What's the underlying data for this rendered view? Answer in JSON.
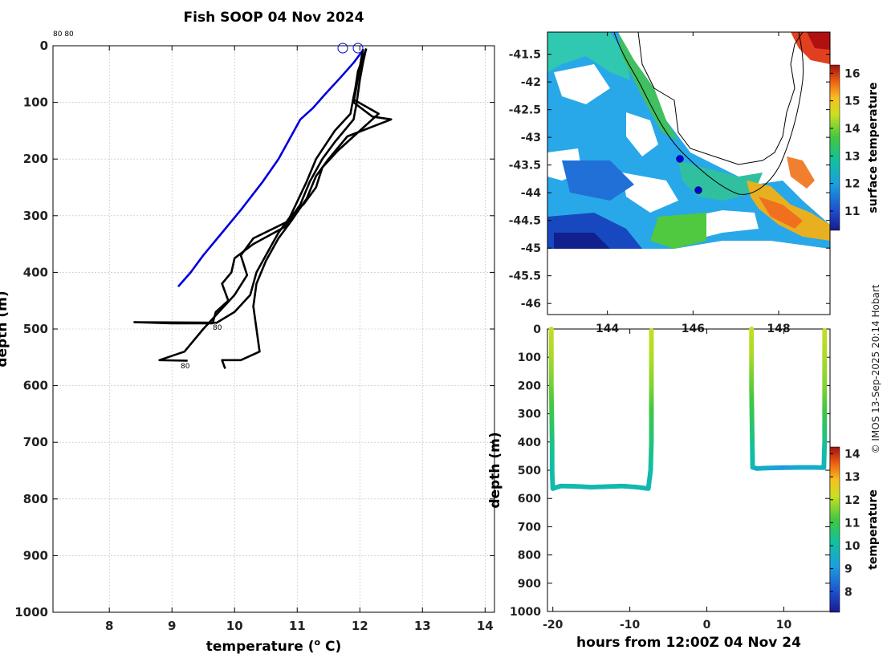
{
  "title": "Fish SOOP 04 Nov 2024",
  "credit": "© IMOS 13-Sep-2025 20:14 Hobart",
  "colors": {
    "profile": "#000000",
    "climatology": "#0000dd",
    "grid": "#bbbbbb"
  },
  "chart_data": [
    {
      "type": "line",
      "name": "temperature-depth profiles",
      "xlabel": "temperature (",
      "xlabel_sup": "o",
      "xlabel_tail": " C)",
      "ylabel": "depth (m)",
      "xlim": [
        7.1,
        14.15
      ],
      "ylim": [
        1000,
        0
      ],
      "xticks": [
        "8",
        "9",
        "10",
        "11",
        "12",
        "13",
        "14"
      ],
      "yticks": [
        "0",
        "100",
        "200",
        "300",
        "400",
        "500",
        "600",
        "700",
        "800",
        "900",
        "1000"
      ],
      "annotations": {
        "top": "80 80",
        "mid": "80",
        "low": "80"
      },
      "series": [
        {
          "name": "climatology",
          "color": "#0000dd",
          "points": [
            [
              12.05,
              8
            ],
            [
              11.9,
              30
            ],
            [
              11.7,
              55
            ],
            [
              11.45,
              85
            ],
            [
              11.25,
              110
            ],
            [
              11.05,
              130
            ],
            [
              10.9,
              160
            ],
            [
              10.7,
              200
            ],
            [
              10.45,
              240
            ],
            [
              10.1,
              290
            ],
            [
              9.8,
              330
            ],
            [
              9.5,
              370
            ],
            [
              9.3,
              400
            ],
            [
              9.1,
              425
            ]
          ]
        },
        {
          "name": "profile 1",
          "color": "#000000",
          "points": [
            [
              12.1,
              5
            ],
            [
              12.05,
              30
            ],
            [
              12.0,
              60
            ],
            [
              11.95,
              100
            ],
            [
              11.9,
              130
            ],
            [
              11.6,
              170
            ],
            [
              11.4,
              200
            ],
            [
              11.2,
              240
            ],
            [
              11.05,
              280
            ],
            [
              10.8,
              320
            ],
            [
              10.3,
              350
            ],
            [
              10.0,
              375
            ],
            [
              9.95,
              400
            ],
            [
              9.8,
              420
            ],
            [
              9.9,
              450
            ],
            [
              9.7,
              470
            ],
            [
              9.65,
              490
            ],
            [
              9.0,
              490
            ],
            [
              8.4,
              488
            ],
            [
              9.7,
              489
            ]
          ]
        },
        {
          "name": "profile 2",
          "color": "#000000",
          "points": [
            [
              12.1,
              5
            ],
            [
              12.0,
              40
            ],
            [
              11.95,
              70
            ],
            [
              11.9,
              100
            ],
            [
              12.2,
              125
            ],
            [
              12.5,
              130
            ],
            [
              11.8,
              160
            ],
            [
              11.5,
              200
            ],
            [
              11.3,
              230
            ],
            [
              11.15,
              270
            ],
            [
              10.9,
              310
            ],
            [
              10.7,
              340
            ],
            [
              10.5,
              380
            ],
            [
              10.35,
              420
            ],
            [
              10.3,
              460
            ],
            [
              10.35,
              500
            ],
            [
              10.4,
              540
            ],
            [
              10.1,
              555
            ],
            [
              9.8,
              555
            ],
            [
              9.85,
              570
            ]
          ]
        },
        {
          "name": "profile 3",
          "color": "#000000",
          "points": [
            [
              12.05,
              6
            ],
            [
              11.98,
              50
            ],
            [
              11.9,
              90
            ],
            [
              11.85,
              120
            ],
            [
              11.6,
              150
            ],
            [
              11.3,
              200
            ],
            [
              11.15,
              240
            ],
            [
              11.0,
              275
            ],
            [
              10.85,
              310
            ],
            [
              10.3,
              340
            ],
            [
              10.1,
              370
            ],
            [
              10.2,
              405
            ],
            [
              10.0,
              440
            ],
            [
              9.75,
              470
            ],
            [
              9.5,
              500
            ],
            [
              9.2,
              540
            ],
            [
              8.8,
              555
            ],
            [
              9.25,
              556
            ]
          ]
        },
        {
          "name": "profile 4",
          "color": "#000000",
          "points": [
            [
              12.1,
              6
            ],
            [
              11.97,
              45
            ],
            [
              11.9,
              95
            ],
            [
              12.3,
              120
            ],
            [
              12.0,
              150
            ],
            [
              11.65,
              185
            ],
            [
              11.4,
              215
            ],
            [
              11.3,
              250
            ],
            [
              11.1,
              280
            ],
            [
              10.9,
              300
            ],
            [
              10.7,
              330
            ],
            [
              10.5,
              370
            ],
            [
              10.35,
              400
            ],
            [
              10.25,
              440
            ],
            [
              10.0,
              470
            ],
            [
              9.7,
              490
            ]
          ]
        }
      ]
    },
    {
      "type": "heatmap",
      "name": "surface temperature map",
      "xlim": [
        142.6,
        149.2
      ],
      "ylim": [
        -46.2,
        -41.1
      ],
      "xticks": [
        "144",
        "146",
        "148"
      ],
      "yticks": [
        "-41.5",
        "-42",
        "-42.5",
        "-43",
        "-43.5",
        "-44",
        "-44.5",
        "-45",
        "-45.5",
        "-46"
      ],
      "colorbar_label": "surface temperature",
      "colorbar_range": [
        10.3,
        16.3
      ],
      "colorbar_ticks": [
        "11",
        "12",
        "13",
        "14",
        "15",
        "16"
      ],
      "markers": [
        {
          "lon": 145.55,
          "lat": -43.4
        },
        {
          "lon": 146.05,
          "lat": -43.95
        }
      ]
    },
    {
      "type": "scatter",
      "name": "depth vs time colored by temperature",
      "xlabel": "hours from 12:00Z 04 Nov 24",
      "ylabel": "depth (m)",
      "xlim": [
        -20.7,
        16.0
      ],
      "ylim": [
        1000,
        0
      ],
      "xticks": [
        "-20",
        "-10",
        "0",
        "10"
      ],
      "yticks": [
        "0",
        "100",
        "200",
        "300",
        "400",
        "500",
        "600",
        "700",
        "800",
        "900",
        "1000"
      ],
      "colorbar_label": "temperature",
      "colorbar_range": [
        7.1,
        14.3
      ],
      "colorbar_ticks": [
        "8",
        "9",
        "10",
        "11",
        "12",
        "13",
        "14"
      ],
      "tracks": [
        [
          [
            -20.2,
            0,
            12.1
          ],
          [
            -20.2,
            100,
            11.9
          ],
          [
            -20.2,
            200,
            11.5
          ],
          [
            -20.15,
            300,
            11.0
          ],
          [
            -20.1,
            400,
            10.4
          ],
          [
            -20.1,
            500,
            10.0
          ],
          [
            -20.0,
            565,
            9.9
          ],
          [
            -19.0,
            556,
            9.9
          ],
          [
            -17.0,
            557,
            9.9
          ],
          [
            -15.0,
            560,
            9.85
          ],
          [
            -13.0,
            558,
            9.85
          ],
          [
            -11.0,
            556,
            9.9
          ],
          [
            -9.0,
            560,
            9.85
          ],
          [
            -7.6,
            565,
            9.8
          ],
          [
            -7.3,
            500,
            10.0
          ],
          [
            -7.2,
            400,
            10.5
          ],
          [
            -7.2,
            300,
            11.0
          ],
          [
            -7.2,
            200,
            11.6
          ],
          [
            -7.2,
            100,
            11.95
          ],
          [
            -7.2,
            0,
            12.1
          ]
        ],
        [
          [
            5.8,
            0,
            12.1
          ],
          [
            5.8,
            100,
            11.9
          ],
          [
            5.8,
            200,
            11.4
          ],
          [
            5.85,
            300,
            10.9
          ],
          [
            5.9,
            400,
            10.3
          ],
          [
            5.95,
            490,
            9.9
          ],
          [
            6.5,
            494,
            9.5
          ],
          [
            8,
            492,
            9.5
          ],
          [
            10,
            491,
            9.0
          ],
          [
            12,
            490,
            9.4
          ],
          [
            14,
            490,
            9.5
          ],
          [
            15.2,
            491,
            9.6
          ],
          [
            15.3,
            400,
            10.3
          ],
          [
            15.3,
            300,
            11.0
          ],
          [
            15.3,
            200,
            11.6
          ],
          [
            15.3,
            100,
            11.9
          ],
          [
            15.3,
            0,
            12.1
          ]
        ]
      ]
    }
  ]
}
